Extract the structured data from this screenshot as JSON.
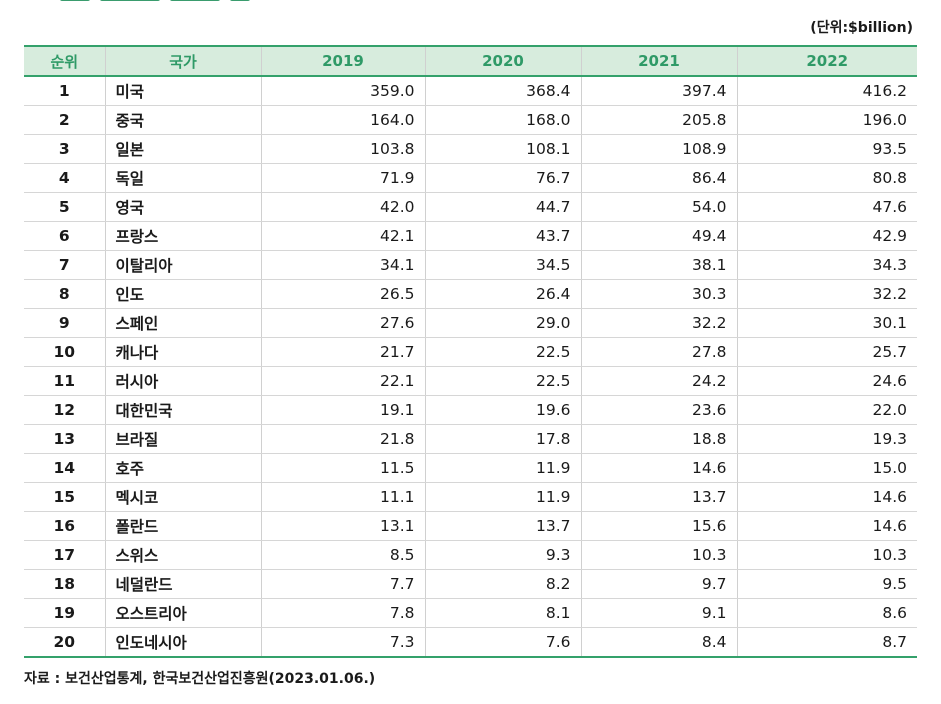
{
  "unit_label": "(단위:$billion)",
  "headers": [
    "순위",
    "국가",
    "2019",
    "2020",
    "2021",
    "2022"
  ],
  "rows": [
    {
      "rank": "1",
      "country": "미국",
      "v2019": "359.0",
      "v2020": "368.4",
      "v2021": "397.4",
      "v2022": "416.2"
    },
    {
      "rank": "2",
      "country": "중국",
      "v2019": "164.0",
      "v2020": "168.0",
      "v2021": "205.8",
      "v2022": "196.0"
    },
    {
      "rank": "3",
      "country": "일본",
      "v2019": "103.8",
      "v2020": "108.1",
      "v2021": "108.9",
      "v2022": "93.5"
    },
    {
      "rank": "4",
      "country": "독일",
      "v2019": "71.9",
      "v2020": "76.7",
      "v2021": "86.4",
      "v2022": "80.8"
    },
    {
      "rank": "5",
      "country": "영국",
      "v2019": "42.0",
      "v2020": "44.7",
      "v2021": "54.0",
      "v2022": "47.6"
    },
    {
      "rank": "6",
      "country": "프랑스",
      "v2019": "42.1",
      "v2020": "43.7",
      "v2021": "49.4",
      "v2022": "42.9"
    },
    {
      "rank": "7",
      "country": "이탈리아",
      "v2019": "34.1",
      "v2020": "34.5",
      "v2021": "38.1",
      "v2022": "34.3"
    },
    {
      "rank": "8",
      "country": "인도",
      "v2019": "26.5",
      "v2020": "26.4",
      "v2021": "30.3",
      "v2022": "32.2"
    },
    {
      "rank": "9",
      "country": "스페인",
      "v2019": "27.6",
      "v2020": "29.0",
      "v2021": "32.2",
      "v2022": "30.1"
    },
    {
      "rank": "10",
      "country": "캐나다",
      "v2019": "21.7",
      "v2020": "22.5",
      "v2021": "27.8",
      "v2022": "25.7"
    },
    {
      "rank": "11",
      "country": "러시아",
      "v2019": "22.1",
      "v2020": "22.5",
      "v2021": "24.2",
      "v2022": "24.6"
    },
    {
      "rank": "12",
      "country": "대한민국",
      "v2019": "19.1",
      "v2020": "19.6",
      "v2021": "23.6",
      "v2022": "22.0"
    },
    {
      "rank": "13",
      "country": "브라질",
      "v2019": "21.8",
      "v2020": "17.8",
      "v2021": "18.8",
      "v2022": "19.3"
    },
    {
      "rank": "14",
      "country": "호주",
      "v2019": "11.5",
      "v2020": "11.9",
      "v2021": "14.6",
      "v2022": "15.0"
    },
    {
      "rank": "15",
      "country": "멕시코",
      "v2019": "11.1",
      "v2020": "11.9",
      "v2021": "13.7",
      "v2022": "14.6"
    },
    {
      "rank": "16",
      "country": "폴란드",
      "v2019": "13.1",
      "v2020": "13.7",
      "v2021": "15.6",
      "v2022": "14.6"
    },
    {
      "rank": "17",
      "country": "스위스",
      "v2019": "8.5",
      "v2020": "9.3",
      "v2021": "10.3",
      "v2022": "10.3"
    },
    {
      "rank": "18",
      "country": "네덜란드",
      "v2019": "7.7",
      "v2020": "8.2",
      "v2021": "9.7",
      "v2022": "9.5"
    },
    {
      "rank": "19",
      "country": "오스트리아",
      "v2019": "7.8",
      "v2020": "8.1",
      "v2021": "9.1",
      "v2022": "8.6"
    },
    {
      "rank": "20",
      "country": "인도네시아",
      "v2019": "7.3",
      "v2020": "7.6",
      "v2021": "8.4",
      "v2022": "8.7"
    }
  ],
  "source": "자료 : 보건산업통계, 한국보건산업진흥원(2023.01.06.)",
  "colors": {
    "accent": "#34a16b",
    "header_bg": "#d7ecdd",
    "header_text": "#2f9a67"
  }
}
